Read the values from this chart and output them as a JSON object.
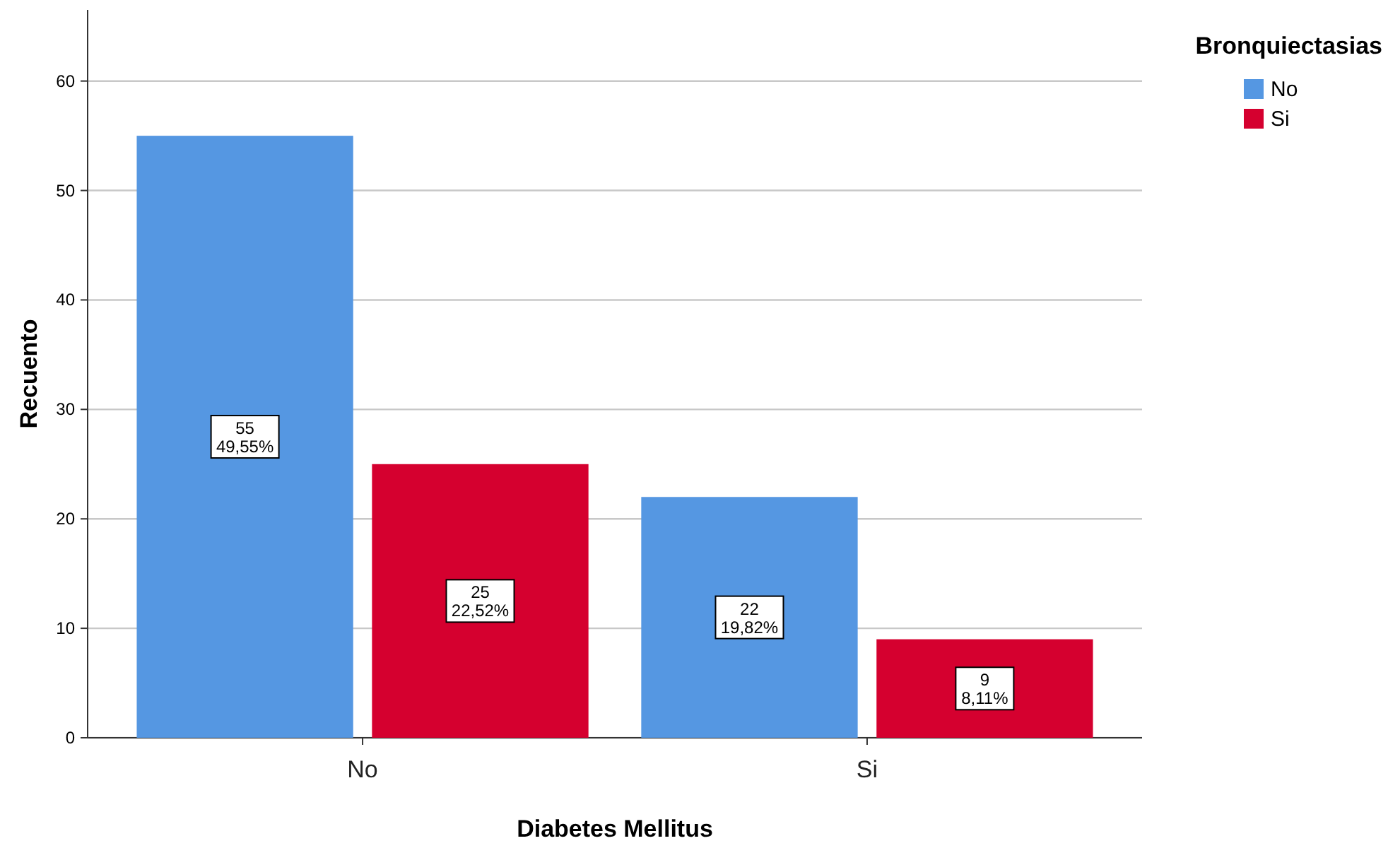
{
  "chart_data": {
    "type": "bar",
    "xlabel": "Diabetes Mellitus",
    "ylabel": "Recuento",
    "legend_title": "Bronquiectasias",
    "categories": [
      "No",
      "Si"
    ],
    "series": [
      {
        "name": "No",
        "color": "#5597e2",
        "values": [
          55,
          22
        ],
        "value_labels": [
          "55\n49,55%",
          "22\n19,82%"
        ]
      },
      {
        "name": "Si",
        "color": "#d5002f",
        "values": [
          25,
          9
        ],
        "value_labels": [
          "25\n22,52%",
          "9\n8,11%"
        ]
      }
    ],
    "ylim": [
      0,
      66.5
    ],
    "yticks": [
      0,
      10,
      20,
      30,
      40,
      50,
      60
    ],
    "grid": "y",
    "legend": "top right"
  }
}
